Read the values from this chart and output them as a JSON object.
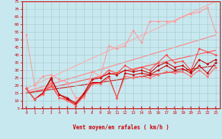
{
  "xlabel": "Vent moyen/en rafales ( km/h )",
  "xlim": [
    -0.5,
    23.5
  ],
  "ylim": [
    5,
    75
  ],
  "yticks": [
    5,
    10,
    15,
    20,
    25,
    30,
    35,
    40,
    45,
    50,
    55,
    60,
    65,
    70,
    75
  ],
  "xticks": [
    0,
    1,
    2,
    3,
    4,
    5,
    6,
    7,
    8,
    9,
    10,
    11,
    12,
    13,
    14,
    15,
    16,
    17,
    18,
    19,
    20,
    21,
    22,
    23
  ],
  "background_color": "#c8e8f0",
  "grid_color": "#aacccc",
  "border_color": "#cc0000",
  "label_color": "#cc0000",
  "x": [
    0,
    1,
    2,
    3,
    4,
    5,
    6,
    7,
    8,
    9,
    10,
    11,
    12,
    13,
    14,
    15,
    16,
    17,
    18,
    19,
    20,
    21,
    22,
    23
  ],
  "s1_y": [
    53,
    20,
    26,
    27,
    24,
    22,
    12,
    12,
    29,
    26,
    46,
    44,
    46,
    56,
    48,
    62,
    62,
    62,
    62,
    65,
    67,
    68,
    71,
    55
  ],
  "s1_color": "#ff9999",
  "s2_y": [
    18,
    11,
    15,
    20,
    12,
    11,
    9,
    15,
    24,
    25,
    30,
    28,
    33,
    30,
    32,
    30,
    35,
    40,
    35,
    36,
    30,
    44,
    42,
    40
  ],
  "s2_color": "#ff4444",
  "s3_y": [
    18,
    11,
    15,
    25,
    14,
    12,
    8,
    15,
    24,
    25,
    28,
    27,
    30,
    29,
    30,
    28,
    33,
    35,
    32,
    33,
    29,
    37,
    34,
    37
  ],
  "s3_color": "#cc0000",
  "s4_y": [
    18,
    11,
    15,
    24,
    14,
    11,
    7,
    14,
    22,
    22,
    26,
    12,
    28,
    27,
    28,
    27,
    30,
    33,
    30,
    31,
    28,
    33,
    28,
    35
  ],
  "s4_color": "#cc0000",
  "s5_y": [
    18,
    11,
    14,
    22,
    12,
    10,
    7,
    13,
    21,
    21,
    25,
    12,
    26,
    25,
    26,
    25,
    27,
    29,
    28,
    29,
    26,
    30,
    26,
    32
  ],
  "s5_color": "#ff6666",
  "r1_color": "#ffaaaa",
  "r1_y0": 18,
  "r1_y1": 75,
  "r2_color": "#ff8888",
  "r2_y0": 16,
  "r2_y1": 53,
  "r3_color": "#ff5555",
  "r3_y0": 15,
  "r3_y1": 43,
  "r4_color": "#cc2222",
  "r4_y0": 15,
  "r4_y1": 33
}
